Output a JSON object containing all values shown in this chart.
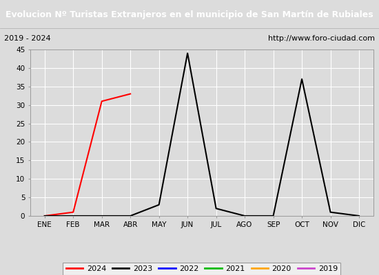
{
  "title": "Evolucion Nº Turistas Extranjeros en el municipio de San Martín de Rubiales",
  "subtitle_left": "2019 - 2024",
  "subtitle_right": "http://www.foro-ciudad.com",
  "title_bg_color": "#4a86c8",
  "title_fg_color": "#ffffff",
  "subtitle_bg_color": "#dcdcdc",
  "plot_bg_color": "#dcdcdc",
  "fig_bg_color": "#dcdcdc",
  "months": [
    "ENE",
    "FEB",
    "MAR",
    "ABR",
    "MAY",
    "JUN",
    "JUL",
    "AGO",
    "SEP",
    "OCT",
    "NOV",
    "DIC"
  ],
  "ylim": [
    0,
    45
  ],
  "yticks": [
    0,
    5,
    10,
    15,
    20,
    25,
    30,
    35,
    40,
    45
  ],
  "series": {
    "2024": {
      "color": "#ff0000",
      "data": [
        0,
        1,
        31,
        33,
        null,
        null,
        null,
        null,
        null,
        null,
        null,
        null
      ]
    },
    "2023": {
      "color": "#000000",
      "data": [
        0,
        0,
        0,
        0,
        3,
        44,
        2,
        0,
        0,
        37,
        1,
        0
      ]
    },
    "2022": {
      "color": "#0000ff",
      "data": [
        null,
        null,
        null,
        null,
        null,
        null,
        null,
        null,
        null,
        null,
        null,
        null
      ]
    },
    "2021": {
      "color": "#00bb00",
      "data": [
        null,
        null,
        null,
        null,
        null,
        null,
        null,
        null,
        null,
        null,
        null,
        null
      ]
    },
    "2020": {
      "color": "#ffa500",
      "data": [
        null,
        null,
        null,
        null,
        null,
        null,
        null,
        null,
        null,
        null,
        null,
        null
      ]
    },
    "2019": {
      "color": "#cc44cc",
      "data": [
        null,
        null,
        null,
        null,
        null,
        null,
        null,
        null,
        null,
        null,
        null,
        null
      ]
    }
  },
  "legend_order": [
    "2024",
    "2023",
    "2022",
    "2021",
    "2020",
    "2019"
  ]
}
